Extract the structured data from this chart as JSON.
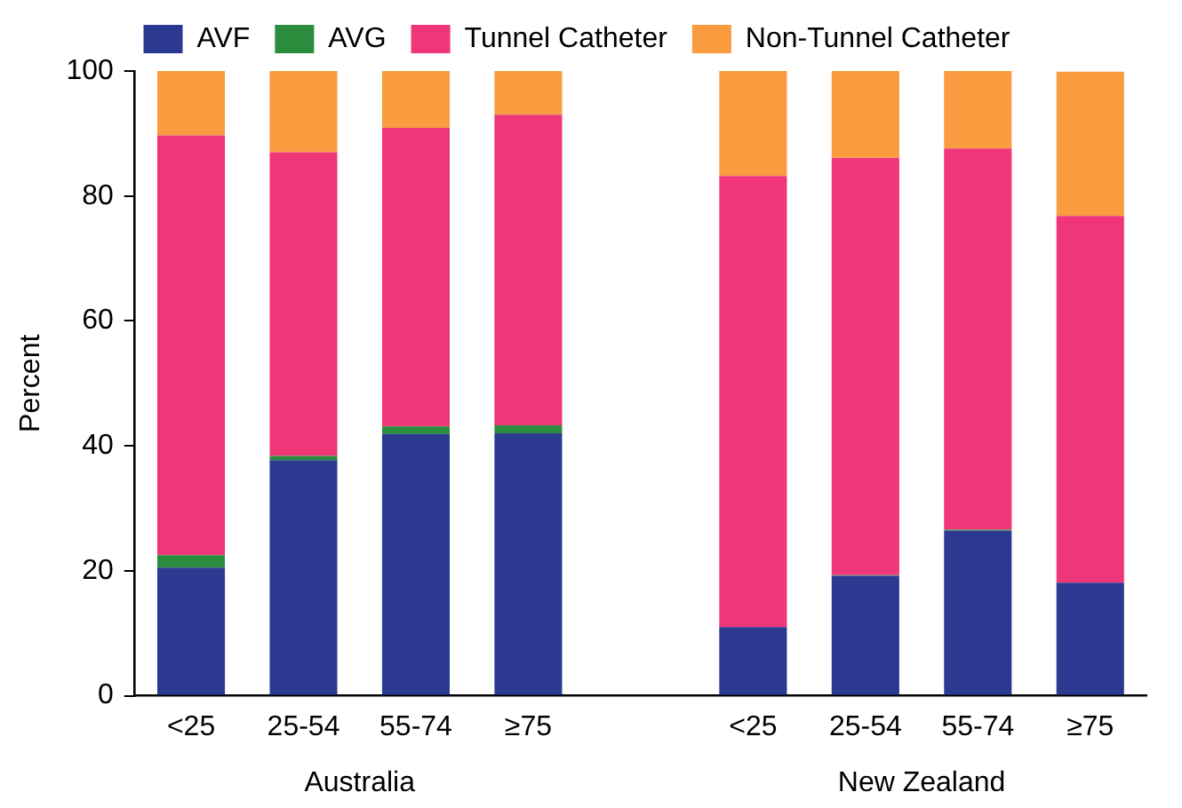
{
  "chart_data": {
    "type": "bar",
    "stacked": true,
    "ylabel": "Percent",
    "categories": [
      "<25",
      "25-54",
      "55-74",
      "≥75",
      null,
      "<25",
      "25-54",
      "55-74",
      "≥75"
    ],
    "series": [
      {
        "name": "AVF",
        "color": "#2b3990",
        "values": [
          20.5,
          37.7,
          41.9,
          42.0,
          null,
          11.0,
          19.2,
          26.4,
          18.1
        ]
      },
      {
        "name": "AVG",
        "color": "#2a8c3c",
        "values": [
          2.0,
          0.7,
          1.2,
          1.3,
          null,
          0,
          0.1,
          0.2,
          null
        ]
      },
      {
        "name": "Tunnel Catheter",
        "color": "#ee3679",
        "values": [
          67.2,
          48.6,
          47.8,
          49.7,
          null,
          72.2,
          66.8,
          61.0,
          58.7
        ]
      },
      {
        "name": "Non-Tunnel Catheter",
        "color": "#f99b3e",
        "values": [
          10.3,
          13.0,
          9.1,
          7.0,
          null,
          16.8,
          14.0,
          12.4,
          23.1
        ]
      }
    ],
    "ylim": [
      0,
      100
    ],
    "yticks": [
      0,
      20,
      40,
      60,
      80,
      100
    ],
    "grid": false,
    "legend": "top",
    "annotations": [
      "Australia",
      "New Zealand"
    ]
  }
}
